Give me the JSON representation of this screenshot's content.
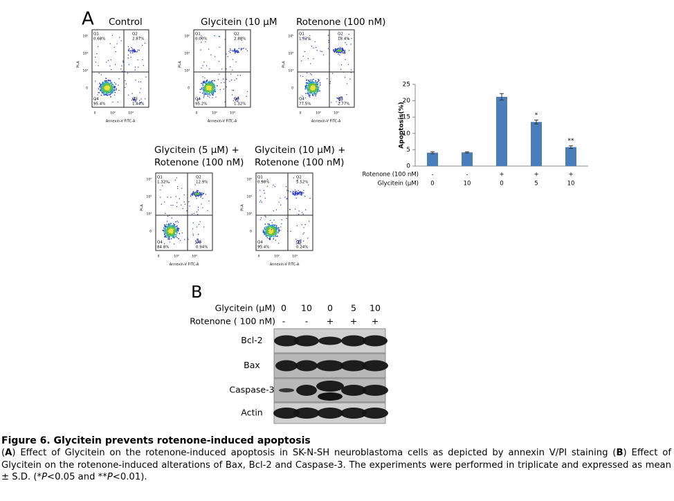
{
  "panel_a": {
    "label": "A",
    "axes": {
      "x_label": "Annexin-V FITC-A",
      "y_label": "PI-A",
      "x_ticks": [
        "0",
        "10²",
        "10³"
      ],
      "y_ticks": [
        "0",
        "10³",
        "10⁴",
        "10⁵"
      ]
    },
    "plots": [
      {
        "title": [
          "Control"
        ],
        "quadrants": {
          "Q1": "0.68%",
          "Q2": "2.87%",
          "Q3": "1.44%",
          "Q4": "95.4%"
        }
      },
      {
        "title": [
          "Glycitein (10 μM"
        ],
        "quadrants": {
          "Q1": "0.00%",
          "Q2": "2.88%",
          "Q3": "1.32%",
          "Q4": "95.2%"
        }
      },
      {
        "title": [
          "Rotenone (100 nM)"
        ],
        "quadrants": {
          "Q1": "1.32%",
          "Q2": "18.4%",
          "Q3": "2.77%",
          "Q4": "77.5%"
        }
      },
      {
        "title": [
          "Glycitein (5 μM) +",
          "Rotenone (100 nM)"
        ],
        "quadrants": {
          "Q1": "1.32%",
          "Q2": "12.9%",
          "Q3": "0.94%",
          "Q4": "84.8%"
        }
      },
      {
        "title": [
          "Glycitein (10 μM) +",
          "Rotenone (100 nM)"
        ],
        "quadrants": {
          "Q1": "0.98%",
          "Q2": "5.52%",
          "Q3": "0.24%",
          "Q4": "93.4%"
        }
      }
    ]
  },
  "chart_data": {
    "type": "bar",
    "y_label": "Apoptosis(%)",
    "categories": [
      null,
      null,
      null,
      null,
      null
    ],
    "values": [
      4.1,
      4.2,
      21.2,
      13.5,
      5.8
    ],
    "errors": [
      0.3,
      0.2,
      1.0,
      0.6,
      0.4
    ],
    "significance": [
      null,
      null,
      null,
      "*",
      "**"
    ],
    "color": "#4a7ebb",
    "ylim": [
      0,
      25
    ],
    "yticks": [
      0,
      5,
      10,
      15,
      20,
      25
    ],
    "conditions": [
      {
        "name": "Rotenone (100 nM)",
        "values": [
          "-",
          "-",
          "+",
          "+",
          "+"
        ]
      },
      {
        "name": "Glycitein (μM)",
        "values": [
          "0",
          "10",
          "0",
          "5",
          "10"
        ]
      }
    ]
  },
  "panel_b": {
    "label": "B",
    "header": [
      {
        "name": "Glycitein (μM)",
        "values": [
          "0",
          "10",
          "0",
          "5",
          "10"
        ]
      },
      {
        "name": "Rotenone ( 100 nM)",
        "values": [
          "-",
          "-",
          "+",
          "+",
          "+"
        ]
      }
    ],
    "bands": [
      "Bcl-2",
      "Bax",
      "Caspase-3",
      "Actin"
    ]
  },
  "caption": {
    "title": "Figure 6. Glycitein prevents rotenone-induced apoptosis",
    "segments": [
      {
        "text": "(",
        "style": "normal"
      },
      {
        "text": "A",
        "style": "bold"
      },
      {
        "text": ") Effect of Glycitein on the rotenone-induced apoptosis in SK-N-SH neuroblastoma cells as depicted by annexin V/PI staining (",
        "style": "normal"
      },
      {
        "text": "B",
        "style": "bold"
      },
      {
        "text": ") Effect of Glycitein on the rotenone-induced alterations of Bax, Bcl-2 and Caspase-3. The experiments were performed in triplicate and expressed as mean ± S.D. (*",
        "style": "normal"
      },
      {
        "text": "P",
        "style": "italic"
      },
      {
        "text": "<0.05 and **",
        "style": "normal"
      },
      {
        "text": "P",
        "style": "italic"
      },
      {
        "text": "<0.01).",
        "style": "normal"
      }
    ]
  }
}
